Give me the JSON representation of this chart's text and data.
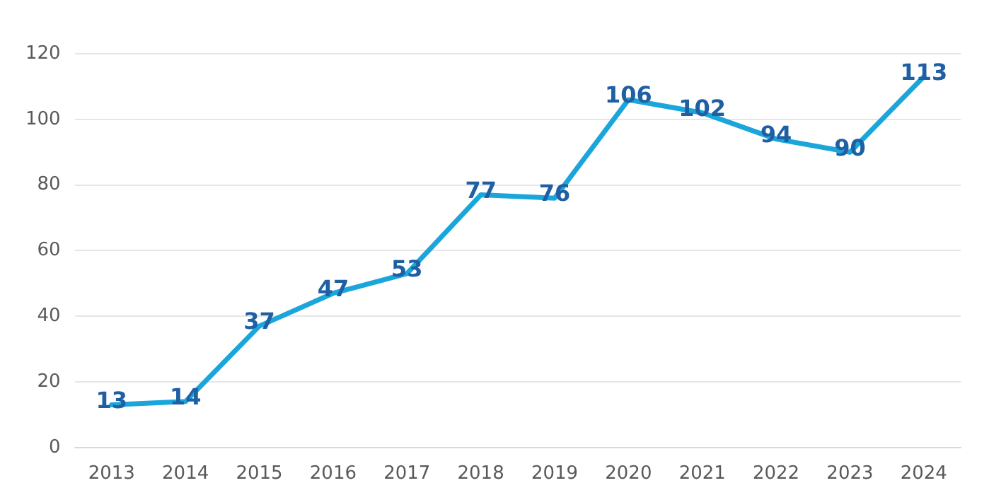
{
  "chart_data": {
    "type": "line",
    "categories": [
      "2013",
      "2014",
      "2015",
      "2016",
      "2017",
      "2018",
      "2019",
      "2020",
      "2021",
      "2022",
      "2023",
      "2024"
    ],
    "series": [
      {
        "color": "#1ba6db",
        "values": [
          13,
          14,
          37,
          47,
          53,
          77,
          76,
          106,
          102,
          94,
          90,
          113
        ]
      }
    ],
    "ylim": [
      0,
      120
    ],
    "yticks": [
      0,
      20,
      40,
      60,
      80,
      100,
      120
    ],
    "grid": "y",
    "legend": false,
    "marker": "none",
    "line_style": "solid",
    "data_labels": true
  }
}
